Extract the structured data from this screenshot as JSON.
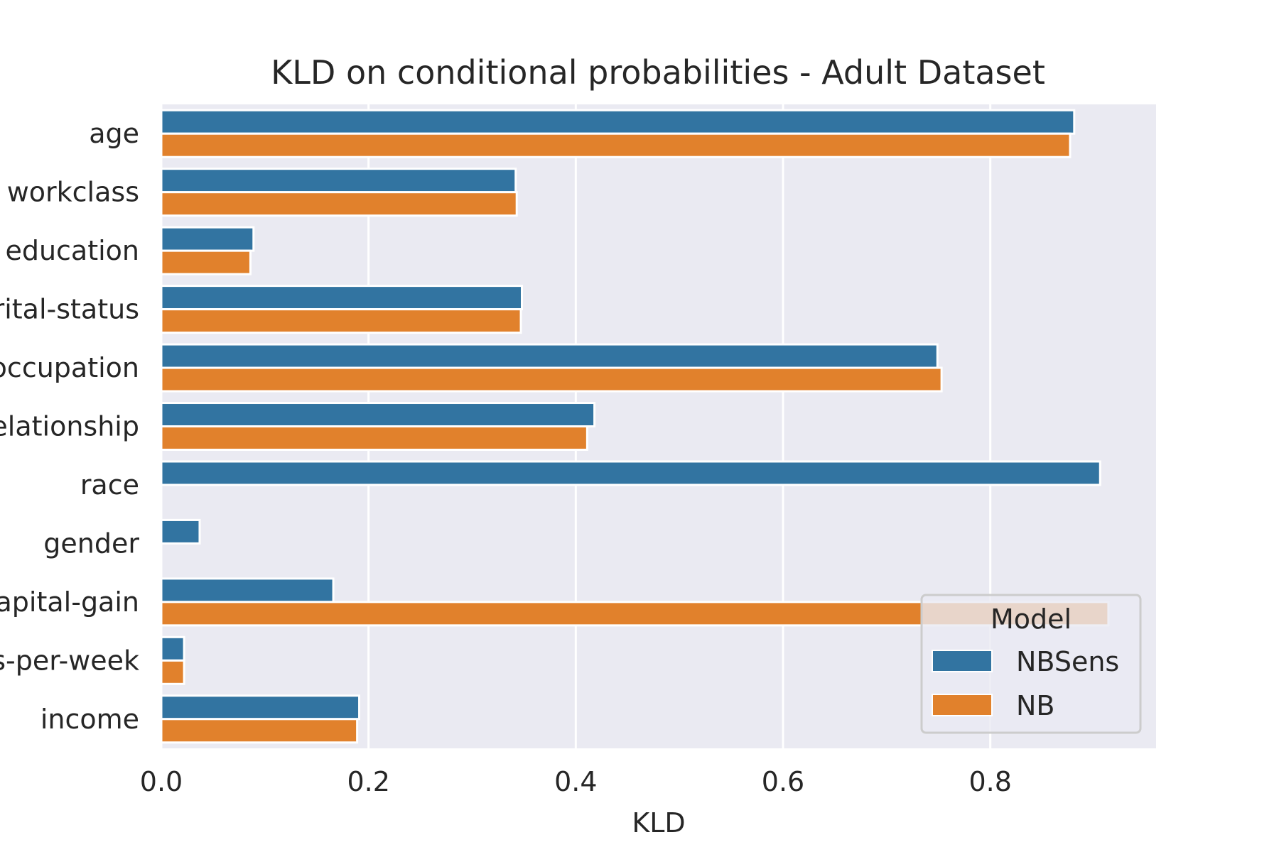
{
  "chart_data": {
    "type": "bar",
    "orientation": "horizontal",
    "title": "KLD on conditional probabilities - Adult Dataset",
    "xlabel": "KLD",
    "ylabel": "",
    "xlim": [
      0,
      0.96
    ],
    "xticks": [
      0.0,
      0.2,
      0.4,
      0.6,
      0.8
    ],
    "xtick_labels": [
      "0.0",
      "0.2",
      "0.4",
      "0.6",
      "0.8"
    ],
    "categories": [
      "age",
      "workclass",
      "education",
      "marital-status",
      "occupation",
      "relationship",
      "race",
      "gender",
      "capital-gain",
      "hours-per-week",
      "income"
    ],
    "series": [
      {
        "name": "NBSens",
        "color": "#3274a1",
        "values": [
          0.881,
          0.342,
          0.089,
          0.348,
          0.749,
          0.418,
          0.906,
          0.037,
          0.166,
          0.022,
          0.191
        ]
      },
      {
        "name": "NB",
        "color": "#e1812c",
        "values": [
          0.877,
          0.343,
          0.086,
          0.347,
          0.753,
          0.411,
          0.0,
          0.0,
          0.914,
          0.022,
          0.189
        ]
      }
    ],
    "legend": {
      "title": "Model",
      "position": "lower-right"
    },
    "grid": true
  }
}
